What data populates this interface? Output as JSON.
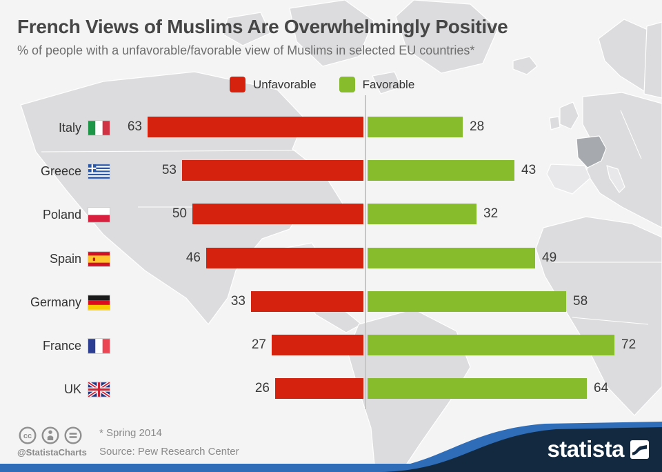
{
  "header": {
    "title": "French Views of Muslims Are Overwhelmingly Positive",
    "subtitle": "% of people with a unfavorable/favorable view of Muslims in selected EU countries*"
  },
  "legend": [
    {
      "label": "Unfavorable",
      "color": "#d5220e"
    },
    {
      "label": "Favorable",
      "color": "#87bd2c"
    }
  ],
  "chart_data": {
    "type": "bar",
    "orientation": "horizontal-diverging",
    "categories": [
      "Italy",
      "Greece",
      "Poland",
      "Spain",
      "Germany",
      "France",
      "UK"
    ],
    "flags": [
      "italy",
      "greece",
      "poland",
      "spain",
      "germany",
      "france",
      "uk"
    ],
    "series": [
      {
        "name": "Unfavorable",
        "color": "#d5220e",
        "direction": "left",
        "values": [
          63,
          53,
          50,
          46,
          33,
          27,
          26
        ]
      },
      {
        "name": "Favorable",
        "color": "#87bd2c",
        "direction": "right",
        "values": [
          28,
          43,
          32,
          49,
          58,
          72,
          64
        ]
      }
    ],
    "value_labels": "outside bar ends",
    "axis": "hidden, center baseline at 0",
    "background": "light gray world map with France highlighted"
  },
  "footer": {
    "footnote": "* Spring 2014",
    "source": "Source: Pew Research Center",
    "credit_handle": "@StatistaCharts",
    "license_icons": [
      "cc-icon",
      "attribution-icon",
      "equal-icon"
    ]
  },
  "branding": {
    "logo_text": "statista"
  },
  "colors": {
    "unfavorable": "#d5220e",
    "favorable": "#87bd2c",
    "background": "#f4f4f5",
    "map_land": "#dcdcde",
    "map_highlight": "#a6a9ad",
    "bottom_bar_blue": "#2f6db8",
    "wave_navy": "#13293f"
  }
}
